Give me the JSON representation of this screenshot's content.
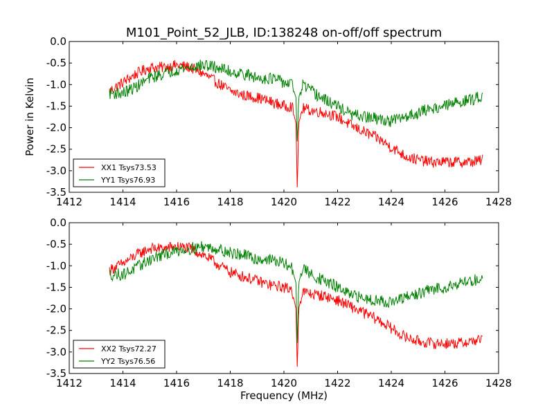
{
  "chart_data": {
    "type": "line",
    "title": "M101_Point_52_JLB, ID:138248 on-off/off spectrum",
    "xlabel": "Frequency (MHz)",
    "xlim": [
      1412,
      1428
    ],
    "xticks": [
      "1412",
      "1414",
      "1416",
      "1418",
      "1420",
      "1422",
      "1424",
      "1426",
      "1428"
    ],
    "panels": [
      {
        "ylabel": "Power in Kelvin",
        "ylim": [
          -3.5,
          0.0
        ],
        "yticks": [
          "0.0",
          "-0.5",
          "-1.0",
          "-1.5",
          "-2.0",
          "-2.5",
          "-3.0",
          "-3.5"
        ],
        "legend_position": "lower-left",
        "series": [
          {
            "name": "XX1 Tsys73.53",
            "color": "#ff0000",
            "x": [
              1413.5,
              1414.0,
              1414.5,
              1415.0,
              1415.5,
              1416.0,
              1416.5,
              1417.0,
              1417.5,
              1418.0,
              1418.5,
              1419.0,
              1419.5,
              1420.0,
              1420.3,
              1420.45,
              1420.5,
              1420.55,
              1420.7,
              1421.0,
              1421.5,
              1422.0,
              1422.5,
              1423.0,
              1423.5,
              1424.0,
              1424.5,
              1425.0,
              1425.5,
              1426.0,
              1426.5,
              1427.0,
              1427.4
            ],
            "y": [
              -1.15,
              -0.95,
              -0.75,
              -0.6,
              -0.6,
              -0.55,
              -0.6,
              -0.75,
              -0.95,
              -1.15,
              -1.25,
              -1.3,
              -1.4,
              -1.5,
              -1.5,
              -1.9,
              -3.5,
              -1.9,
              -1.55,
              -1.6,
              -1.65,
              -1.75,
              -1.95,
              -2.1,
              -2.25,
              -2.45,
              -2.65,
              -2.75,
              -2.8,
              -2.8,
              -2.8,
              -2.8,
              -2.75
            ]
          },
          {
            "name": "YY1 Tsys76.93",
            "color": "#008000",
            "x": [
              1413.5,
              1414.0,
              1414.5,
              1415.0,
              1415.5,
              1416.0,
              1416.5,
              1417.0,
              1417.5,
              1418.0,
              1418.5,
              1419.0,
              1419.5,
              1420.0,
              1420.3,
              1420.45,
              1420.5,
              1420.55,
              1420.7,
              1421.0,
              1421.5,
              1422.0,
              1422.5,
              1423.0,
              1423.5,
              1424.0,
              1424.5,
              1425.0,
              1425.5,
              1426.0,
              1426.5,
              1427.0,
              1427.4
            ],
            "y": [
              -1.2,
              -1.2,
              -1.05,
              -0.85,
              -0.75,
              -0.65,
              -0.6,
              -0.55,
              -0.6,
              -0.7,
              -0.75,
              -0.85,
              -0.85,
              -0.95,
              -1.0,
              -1.3,
              -2.4,
              -1.3,
              -1.0,
              -1.15,
              -1.35,
              -1.5,
              -1.7,
              -1.75,
              -1.8,
              -1.85,
              -1.75,
              -1.65,
              -1.55,
              -1.5,
              -1.4,
              -1.35,
              -1.25
            ]
          }
        ]
      },
      {
        "ylabel": "",
        "ylim": [
          -3.5,
          0.0
        ],
        "yticks": [
          "0.0",
          "-0.5",
          "-1.0",
          "-1.5",
          "-2.0",
          "-2.5",
          "-3.0",
          "-3.5"
        ],
        "legend_position": "lower-left",
        "series": [
          {
            "name": "XX2 Tsys72.27",
            "color": "#ff0000",
            "x": [
              1413.5,
              1414.0,
              1414.5,
              1415.0,
              1415.5,
              1416.0,
              1416.5,
              1417.0,
              1417.5,
              1418.0,
              1418.5,
              1419.0,
              1419.5,
              1420.0,
              1420.3,
              1420.45,
              1420.5,
              1420.55,
              1420.7,
              1421.0,
              1421.5,
              1422.0,
              1422.5,
              1423.0,
              1423.5,
              1424.0,
              1424.5,
              1425.0,
              1425.5,
              1426.0,
              1426.5,
              1427.0,
              1427.4
            ],
            "y": [
              -1.1,
              -0.95,
              -0.75,
              -0.6,
              -0.6,
              -0.55,
              -0.6,
              -0.75,
              -0.95,
              -1.15,
              -1.25,
              -1.35,
              -1.45,
              -1.5,
              -1.55,
              -2.0,
              -3.45,
              -2.0,
              -1.6,
              -1.65,
              -1.7,
              -1.8,
              -1.95,
              -2.1,
              -2.25,
              -2.45,
              -2.65,
              -2.75,
              -2.8,
              -2.8,
              -2.8,
              -2.75,
              -2.7
            ]
          },
          {
            "name": "YY2 Tsys76.56",
            "color": "#008000",
            "x": [
              1413.5,
              1414.0,
              1414.5,
              1415.0,
              1415.5,
              1416.0,
              1416.5,
              1417.0,
              1417.5,
              1418.0,
              1418.5,
              1419.0,
              1419.5,
              1420.0,
              1420.3,
              1420.45,
              1420.5,
              1420.55,
              1420.7,
              1421.0,
              1421.5,
              1422.0,
              1422.5,
              1423.0,
              1423.5,
              1424.0,
              1424.5,
              1425.0,
              1425.5,
              1426.0,
              1426.5,
              1427.0,
              1427.4
            ],
            "y": [
              -1.2,
              -1.2,
              -1.05,
              -0.85,
              -0.75,
              -0.65,
              -0.6,
              -0.55,
              -0.6,
              -0.7,
              -0.75,
              -0.85,
              -0.85,
              -0.95,
              -1.05,
              -1.4,
              -2.9,
              -1.4,
              -1.05,
              -1.2,
              -1.35,
              -1.5,
              -1.7,
              -1.75,
              -1.8,
              -1.85,
              -1.75,
              -1.65,
              -1.55,
              -1.5,
              -1.4,
              -1.35,
              -1.3
            ]
          }
        ]
      }
    ]
  }
}
